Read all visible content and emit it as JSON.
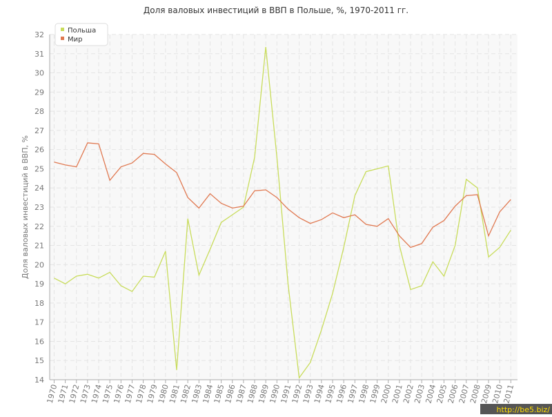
{
  "chart_data": {
    "type": "line",
    "title": "Доля валовых инвестиций в ВВП в Польше, %, 1970-2011 гг.",
    "y_label": "Доля валовых инвестиций в ВВП, %",
    "watermark": "http://be5.biz/",
    "x": [
      1970,
      1971,
      1972,
      1973,
      1974,
      1975,
      1976,
      1977,
      1978,
      1979,
      1980,
      1981,
      1982,
      1983,
      1984,
      1985,
      1986,
      1987,
      1988,
      1989,
      1990,
      1991,
      1992,
      1993,
      1994,
      1995,
      1996,
      1997,
      1998,
      1999,
      2000,
      2001,
      2002,
      2003,
      2004,
      2005,
      2006,
      2007,
      2008,
      2009,
      2010,
      2011
    ],
    "xlim": [
      1969.6,
      2011.6
    ],
    "ylim": [
      14,
      32
    ],
    "yticks": [
      14,
      15,
      16,
      17,
      18,
      19,
      20,
      21,
      22,
      23,
      24,
      25,
      26,
      27,
      28,
      29,
      30,
      31,
      32
    ],
    "grid": true,
    "legend": "top-left",
    "series": [
      {
        "name": "Польша",
        "color": "#c8dc5a",
        "values": [
          19.3,
          19.0,
          19.4,
          19.5,
          19.3,
          19.6,
          18.9,
          18.6,
          19.4,
          19.35,
          20.7,
          14.5,
          22.4,
          19.45,
          20.8,
          22.2,
          22.6,
          23.0,
          25.6,
          31.35,
          25.6,
          19.0,
          14.1,
          14.9,
          16.6,
          18.5,
          20.9,
          23.6,
          24.85,
          25.0,
          25.15,
          21.0,
          18.7,
          18.9,
          20.15,
          19.4,
          21.0,
          24.45,
          24.0,
          20.4,
          20.9,
          21.8
        ]
      },
      {
        "name": "Мир",
        "color": "#e07850",
        "values": [
          25.35,
          25.2,
          25.1,
          26.35,
          26.3,
          24.4,
          25.1,
          25.3,
          25.8,
          25.75,
          25.25,
          24.8,
          23.5,
          22.95,
          23.7,
          23.2,
          22.95,
          23.05,
          23.85,
          23.9,
          23.5,
          22.9,
          22.45,
          22.15,
          22.35,
          22.7,
          22.45,
          22.6,
          22.1,
          22.0,
          22.4,
          21.5,
          20.9,
          21.1,
          21.95,
          22.3,
          23.05,
          23.6,
          23.65,
          21.5,
          22.75,
          23.4
        ]
      }
    ]
  }
}
